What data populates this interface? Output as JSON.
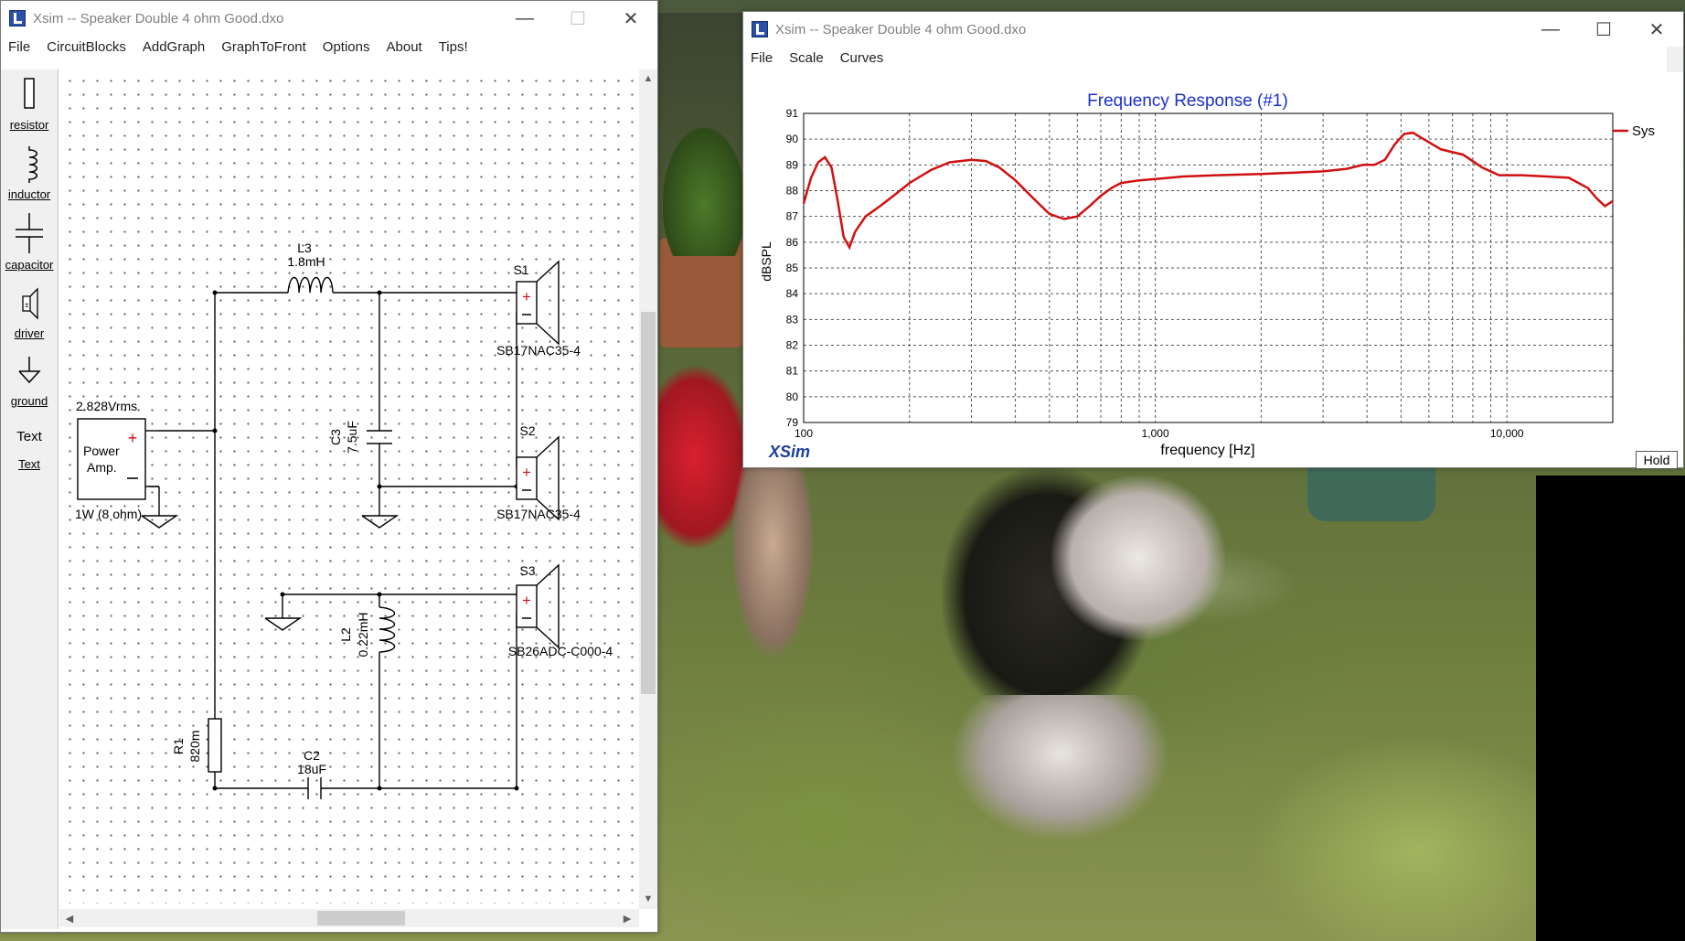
{
  "schematic_window": {
    "title": "Xsim -- Speaker Double 4 ohm Good.dxo",
    "menu": [
      "File",
      "CircuitBlocks",
      "AddGraph",
      "GraphToFront",
      "Options",
      "About",
      "Tips!"
    ],
    "tools": [
      "resistor",
      "inductor",
      "capacitor",
      "driver",
      "ground",
      "Text"
    ],
    "text_tool_glyph": "Text",
    "components": {
      "source_voltage": "2.828Vrms",
      "source_label_1": "Power",
      "source_label_2": "Amp.",
      "source_power": "1W (8 ohm)",
      "l3_name": "L3",
      "l3_value": "1.8mH",
      "c3_name": "C3",
      "c3_value": "7.5uF",
      "l2_name": "L2",
      "l2_value": "0.22mH",
      "r1_name": "R1",
      "r1_value": "820m",
      "c2_name": "C2",
      "c2_value": "18uF",
      "s1_name": "S1",
      "s1_model": "SB17NAC35-4",
      "s2_name": "S2",
      "s2_model": "SB17NAC35-4",
      "s3_name": "S3",
      "s3_model": "SB26ADC-C000-4"
    }
  },
  "graph_window": {
    "title": "Xsim -- Speaker Double 4 ohm Good.dxo",
    "menu": [
      "File",
      "Scale",
      "Curves"
    ],
    "logo": "XSim",
    "hold_label": "Hold"
  },
  "chart_data": {
    "type": "line",
    "title": "Frequency Response (#1)",
    "xlabel": "frequency [Hz]",
    "ylabel": "dBSPL",
    "x_scale": "log",
    "xlim": [
      100,
      20000
    ],
    "ylim": [
      79,
      91
    ],
    "x_tick_labels": [
      "100",
      "1,000",
      "10,000"
    ],
    "x_tick_values": [
      100,
      1000,
      10000
    ],
    "y_ticks": [
      79,
      80,
      81,
      82,
      83,
      84,
      85,
      86,
      87,
      88,
      89,
      90,
      91
    ],
    "grid": true,
    "legend_position": "right",
    "series": [
      {
        "name": "Sys",
        "color": "#d01010",
        "x": [
          100,
          105,
          110,
          115,
          120,
          125,
          130,
          135,
          140,
          150,
          165,
          180,
          200,
          230,
          260,
          300,
          330,
          360,
          400,
          450,
          500,
          550,
          600,
          650,
          700,
          750,
          800,
          900,
          1000,
          1200,
          1500,
          2000,
          2500,
          3000,
          3500,
          3900,
          4200,
          4500,
          4800,
          5100,
          5400,
          5800,
          6500,
          7500,
          8500,
          9500,
          11000,
          13000,
          15000,
          17000,
          18000,
          19000,
          20000
        ],
        "y": [
          87.5,
          88.5,
          89.1,
          89.3,
          88.9,
          87.6,
          86.2,
          85.8,
          86.4,
          87.0,
          87.4,
          87.8,
          88.3,
          88.8,
          89.1,
          89.2,
          89.15,
          88.9,
          88.4,
          87.7,
          87.1,
          86.9,
          87.0,
          87.4,
          87.8,
          88.1,
          88.3,
          88.4,
          88.45,
          88.55,
          88.6,
          88.65,
          88.7,
          88.75,
          88.85,
          89.0,
          89.0,
          89.2,
          89.8,
          90.2,
          90.25,
          90.0,
          89.6,
          89.4,
          88.9,
          88.6,
          88.6,
          88.55,
          88.5,
          88.1,
          87.7,
          87.4,
          87.6
        ]
      }
    ]
  }
}
